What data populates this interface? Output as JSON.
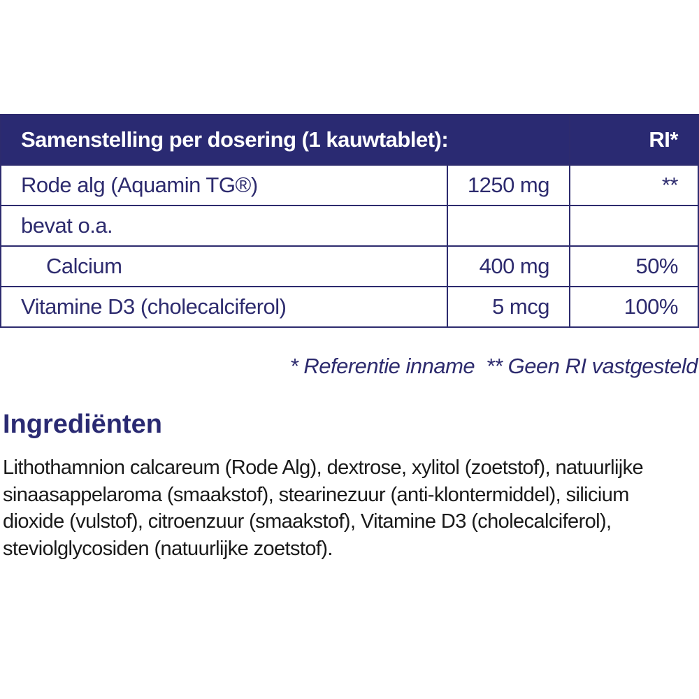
{
  "table": {
    "header": {
      "title": "Samenstelling per dosering (1 kauwtablet):",
      "ri": "RI*"
    },
    "rows": [
      {
        "name": "Rode alg (Aquamin TG®)",
        "amount": "1250 mg",
        "ri": "**"
      },
      {
        "name": "bevat o.a.",
        "amount": "",
        "ri": ""
      },
      {
        "name": "Calcium",
        "amount": "400 mg",
        "ri": "50%"
      },
      {
        "name": "Vitamine D3 (cholecalciferol)",
        "amount": "5 mcg",
        "ri": "100%"
      }
    ]
  },
  "footnote": "* Referentie inname  ** Geen RI vastgesteld",
  "ingredients": {
    "title": "Ingrediënten",
    "text": "Lithothamnion calcareum (Rode Alg), dextrose, xylitol (zoetstof), natuurlijke sinaasappelaroma (smaakstof), stearinezuur (anti-klontermiddel), silicium dioxide (vulstof), citroenzuur (smaakstof), Vitamine D3 (cholecalciferol), steviolglycosiden (natuurlijke zoetstof)."
  },
  "colors": {
    "brand": "#2a2a72"
  }
}
